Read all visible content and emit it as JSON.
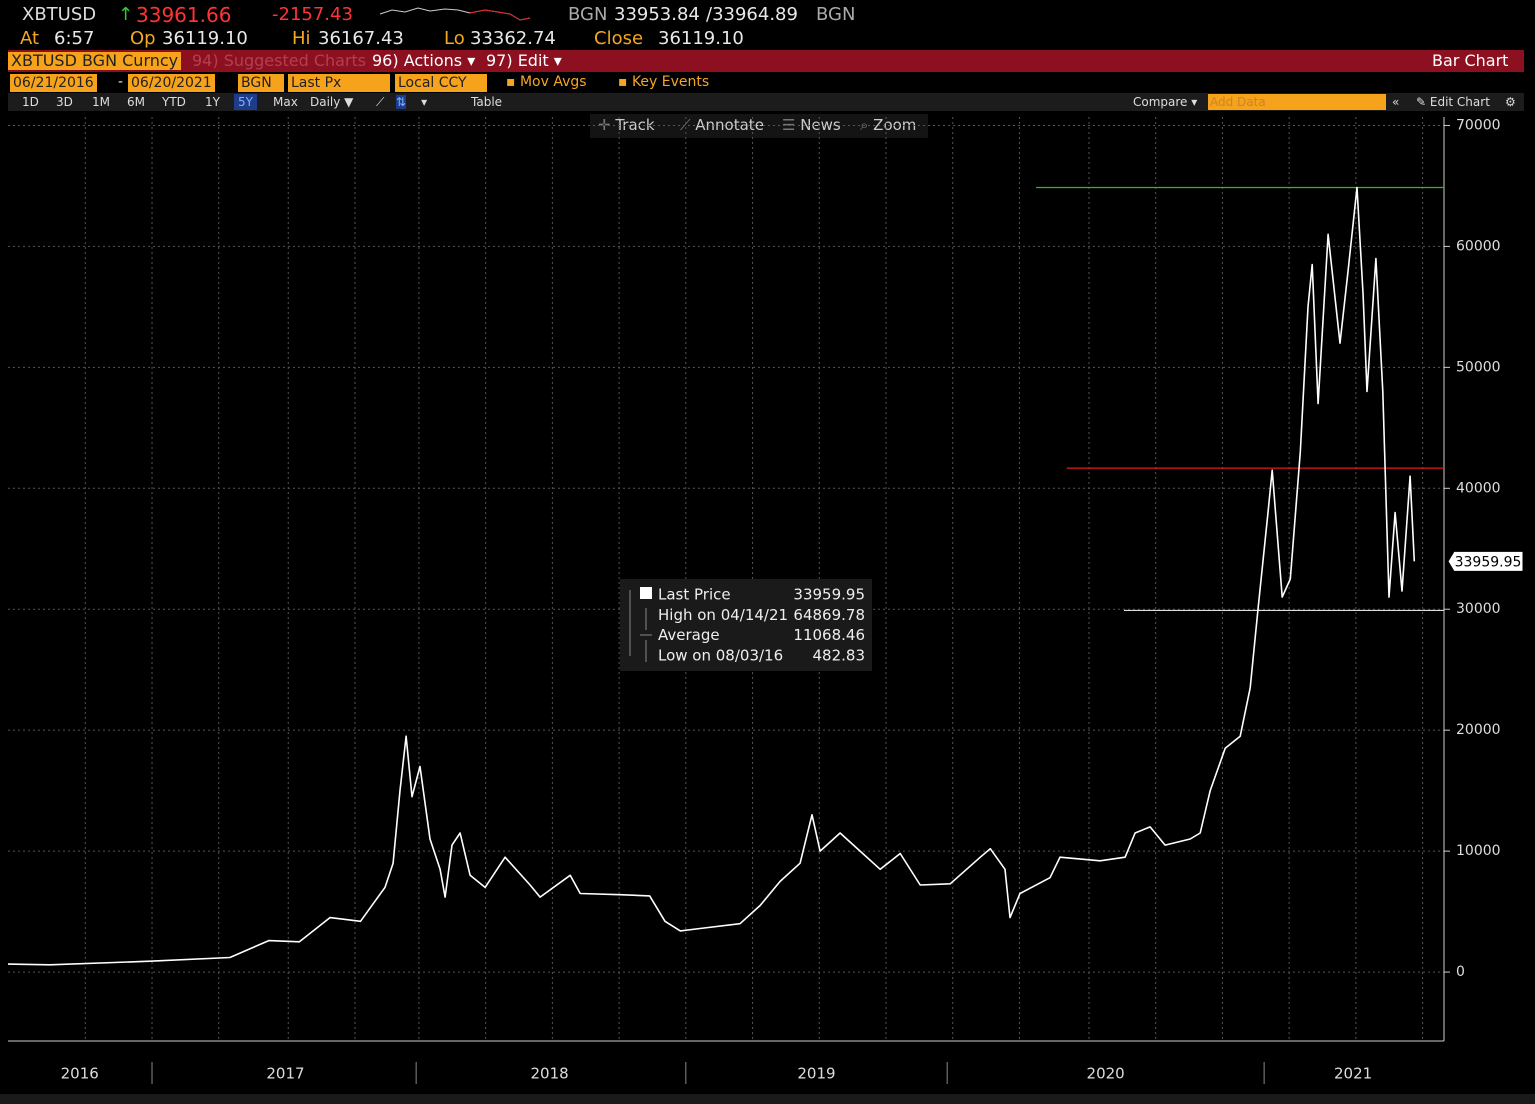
{
  "header": {
    "ticker": "XBTUSD",
    "last": "33961.66",
    "change": "-2157.43",
    "bid_source": "BGN",
    "bid": "33953.84",
    "ask": "/33964.89",
    "ask_source": "BGN",
    "time_label": "At",
    "time": "6:57",
    "open_label": "Op",
    "open": "36119.10",
    "high_label": "Hi",
    "high": "36167.43",
    "low_label": "Lo",
    "low": "33362.74",
    "close_label": "Close",
    "close": "36119.10"
  },
  "menu": {
    "security": "XBTUSD BGN Curncy",
    "suggested": "94) Suggested Charts",
    "actions": "96) Actions ▾",
    "edit": "97) Edit ▾",
    "view": "Bar Chart"
  },
  "settings": {
    "start_date": "06/21/2016",
    "separator": "-",
    "end_date": "06/20/2021",
    "source": "BGN",
    "field": "Last Px",
    "currency": "Local CCY",
    "mov_avgs": "Mov Avgs",
    "key_events": "Key Events"
  },
  "toolbar": {
    "periods": [
      "1D",
      "3D",
      "1M",
      "6M",
      "YTD",
      "1Y",
      "5Y",
      "Max"
    ],
    "selected_period": "5Y",
    "frequency": "Daily ▼",
    "table": "Table",
    "compare": "Compare ▾",
    "add_data": "Add Data",
    "edit_chart": "Edit Chart"
  },
  "chart_tools": [
    "Track",
    "Annotate",
    "News",
    "Zoom"
  ],
  "chart_data": {
    "type": "line",
    "series": [
      {
        "name": "Last Price",
        "color": "#ffffff",
        "x": [
          2016.482,
          2016.633,
          2016.993,
          2017.28,
          2017.42,
          2017.53,
          2017.64,
          2017.75,
          2017.838,
          2017.867,
          2017.892,
          2017.914,
          2017.935,
          2017.964,
          2018.0,
          2018.036,
          2018.054,
          2018.079,
          2018.108,
          2018.144,
          2018.198,
          2018.27,
          2018.36,
          2018.396,
          2018.504,
          2018.54,
          2018.683,
          2018.79,
          2018.845,
          2018.9,
          2018.971,
          2019.115,
          2019.187,
          2019.259,
          2019.331,
          2019.374,
          2019.403,
          2019.475,
          2019.547,
          2019.619,
          2019.691,
          2019.763,
          2019.871,
          2019.979,
          2020.015,
          2020.068,
          2020.086,
          2020.122,
          2020.23,
          2020.266,
          2020.41,
          2020.5,
          2020.536,
          2020.59,
          2020.644,
          2020.734,
          2020.77,
          2020.806,
          2020.86,
          2020.914,
          2020.95,
          2020.978,
          2021.014,
          2021.029,
          2021.065,
          2021.094,
          2021.13,
          2021.158,
          2021.173,
          2021.194,
          2021.23,
          2021.273,
          2021.302,
          2021.334,
          2021.356,
          2021.37,
          2021.402,
          2021.427,
          2021.449,
          2021.471,
          2021.496,
          2021.525,
          2021.54
        ],
        "values": [
          660,
          600,
          900,
          1200,
          2600,
          2500,
          4500,
          4200,
          7000,
          9000,
          15000,
          19500,
          14500,
          17000,
          11000,
          8500,
          6200,
          10500,
          11500,
          8000,
          7000,
          9500,
          7200,
          6200,
          8000,
          6500,
          6400,
          6300,
          4200,
          3400,
          3600,
          4000,
          5500,
          7500,
          9000,
          13000,
          10000,
          11500,
          10000,
          8500,
          9800,
          7200,
          7300,
          9500,
          10200,
          8500,
          4500,
          6500,
          7800,
          9500,
          9200,
          9500,
          11500,
          12000,
          10500,
          11000,
          11500,
          15000,
          18500,
          19500,
          23500,
          30000,
          38000,
          41500,
          31000,
          32500,
          43000,
          55000,
          58500,
          47000,
          61000,
          52000,
          58000,
          64870,
          56000,
          48000,
          59000,
          48000,
          31000,
          38000,
          31500,
          41000,
          33960
        ]
      }
    ],
    "legend": [
      {
        "label": "Last Price",
        "value": 33959.95
      },
      {
        "label": "High on 04/14/21",
        "value": 64869.78
      },
      {
        "label": "Average",
        "value": 11068.46
      },
      {
        "label": "Low on 08/03/16",
        "value": 482.83
      }
    ],
    "reference_lines": [
      {
        "value": 64869.78,
        "color": "#22c022",
        "start": 2020.18
      },
      {
        "value": 41670,
        "color": "#e01818",
        "start": 2020.29
      },
      {
        "value": 29900,
        "color": "#dddddd",
        "start": 2020.496
      }
    ],
    "xlim": [
      2016.482,
      2021.647
    ],
    "ylim": [
      -5700,
      70700
    ],
    "yticks": [
      0,
      10000,
      20000,
      30000,
      40000,
      50000,
      60000,
      70000
    ],
    "xticks": [
      {
        "value": 2016.74,
        "label": "2016"
      },
      {
        "value": 2017.48,
        "label": "2017"
      },
      {
        "value": 2018.43,
        "label": "2018"
      },
      {
        "value": 2019.39,
        "label": "2019"
      },
      {
        "value": 2020.43,
        "label": "2020"
      },
      {
        "value": 2021.32,
        "label": "2021"
      }
    ],
    "year_separators": [
      2017.0,
      2017.95,
      2018.92,
      2019.86,
      2021.0
    ],
    "x_grid": [
      2016.76,
      2017.0,
      2017.24,
      2017.49,
      2017.73,
      2017.96,
      2018.2,
      2018.44,
      2018.68,
      2018.92,
      2019.16,
      2019.4,
      2019.64,
      2019.88,
      2020.12,
      2020.37,
      2020.61,
      2020.85,
      2021.09,
      2021.33,
      2021.57
    ],
    "grid": true
  }
}
